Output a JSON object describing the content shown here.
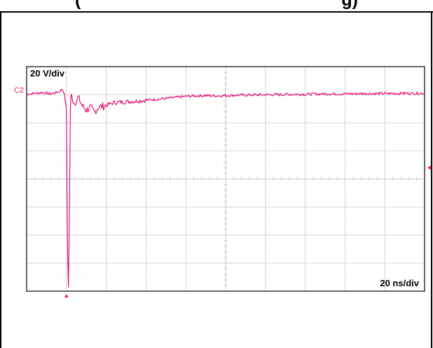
{
  "figure": {
    "title_visible_fragment": "(",
    "title_visible_fragment_2": "g)"
  },
  "chart_data": {
    "type": "line",
    "title": "",
    "xlabel": "",
    "ylabel": "",
    "vertical_scale_label": "20 V/div",
    "horizontal_scale_label": "20 ns/div",
    "channel_label": "C2",
    "grid": true,
    "grid_divisions": {
      "x": 10,
      "y": 8
    },
    "xlim_div": [
      0,
      10
    ],
    "ylim_div": [
      -4,
      4
    ],
    "series": [
      {
        "trace": "C2",
        "color": "#e0006e",
        "points": [
          [
            0.0,
            3.02
          ],
          [
            0.2,
            3.05
          ],
          [
            0.4,
            3.08
          ],
          [
            0.6,
            3.03
          ],
          [
            0.8,
            3.1
          ],
          [
            0.9,
            3.2
          ],
          [
            0.95,
            3.0
          ],
          [
            1.0,
            2.5
          ],
          [
            1.03,
            -2.5
          ],
          [
            1.05,
            -3.85
          ],
          [
            1.07,
            -2.0
          ],
          [
            1.1,
            2.6
          ],
          [
            1.12,
            2.95
          ],
          [
            1.2,
            2.7
          ],
          [
            1.3,
            2.9
          ],
          [
            1.4,
            2.6
          ],
          [
            1.5,
            2.45
          ],
          [
            1.6,
            2.55
          ],
          [
            1.7,
            2.38
          ],
          [
            1.8,
            2.55
          ],
          [
            2.0,
            2.62
          ],
          [
            2.2,
            2.72
          ],
          [
            2.5,
            2.75
          ],
          [
            2.8,
            2.78
          ],
          [
            3.2,
            2.83
          ],
          [
            3.6,
            2.88
          ],
          [
            4.0,
            2.94
          ],
          [
            4.4,
            2.97
          ],
          [
            4.8,
            2.96
          ],
          [
            5.2,
            2.98
          ],
          [
            5.6,
            2.99
          ],
          [
            6.0,
            3.0
          ],
          [
            6.5,
            3.01
          ],
          [
            7.0,
            3.02
          ],
          [
            7.5,
            3.03
          ],
          [
            8.0,
            3.03
          ],
          [
            8.5,
            3.04
          ],
          [
            9.0,
            3.04
          ],
          [
            9.5,
            3.05
          ],
          [
            10.0,
            3.05
          ]
        ]
      }
    ],
    "trigger_level_div": 0.4,
    "trigger_position_div": 1.0
  },
  "colors": {
    "trace": "#e0006e",
    "marker": "#e8254a",
    "grid": "#c8c8c8",
    "frame": "#000000"
  }
}
